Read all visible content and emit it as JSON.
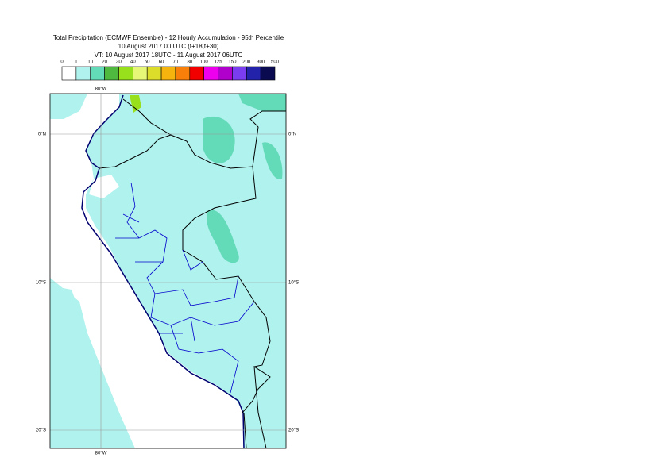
{
  "header": {
    "title": "Total Precipitation (ECMWF Ensemble) - 12 Hourly Accumulation - 95th Percentile",
    "subtitle": "10 August 2017 00 UTC (t+18,t+30)",
    "valid_time": "VT: 10 August 2017 18UTC - 11 August 2017 06UTC"
  },
  "legend": {
    "labels": [
      "0",
      "1",
      "10",
      "20",
      "30",
      "40",
      "50",
      "60",
      "70",
      "80",
      "100",
      "125",
      "150",
      "200",
      "300",
      "500"
    ],
    "colors": [
      "#ffffff",
      "#b0f2ee",
      "#63dab8",
      "#4fb83f",
      "#98e01c",
      "#e6f777",
      "#dcdc2a",
      "#f5b50e",
      "#f77f0a",
      "#f20000",
      "#ee00ee",
      "#b000cc",
      "#7b3df0",
      "#2222aa",
      "#0a0a50"
    ]
  },
  "map": {
    "lon_label_top": "80°W",
    "lon_label_bottom": "80°W",
    "lat_labels_left": [
      "0°N",
      "10°S",
      "20°S"
    ],
    "lat_labels_right": [
      "0°N",
      "10°S",
      "20°S"
    ]
  }
}
